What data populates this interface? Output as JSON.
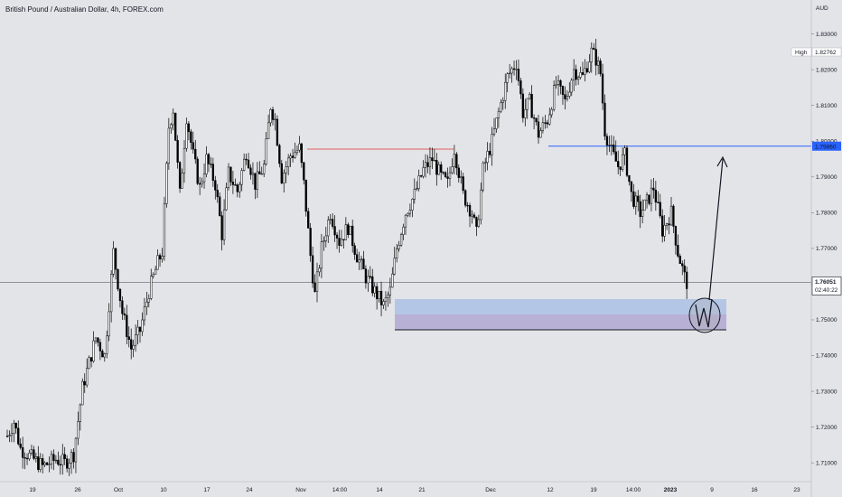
{
  "header": {
    "symbol_title": "British Pound / Australian Dollar, 4h, FOREX.com"
  },
  "price_scale": {
    "currency": "AUD",
    "high_tag_label": "High",
    "high_tag_value": "1.82762",
    "level_tag_value": "1.79860",
    "last_price_value": "1.76051",
    "countdown": "02:40:22"
  },
  "colors": {
    "background": "#e3e4e8",
    "candle_body": "#000000",
    "candle_wick": "#000000",
    "target_line": "#2962ff",
    "resistance_line": "#e06060",
    "demand_zone_upper": "#b4c6e6",
    "demand_zone_lower": "#b9b0d6",
    "last_price_tag": "#ffffff",
    "level_tag": "#2962ff"
  },
  "chart_data": {
    "type": "candlestick",
    "title": "British Pound / Australian Dollar, 4h, FOREX.com",
    "y_unit": "AUD",
    "ylim": [
      1.7055,
      1.8395
    ],
    "y_ticks": [
      "1.83000",
      "1.82000",
      "1.81000",
      "1.80000",
      "1.79000",
      "1.78000",
      "1.77000",
      "1.76000",
      "1.75000",
      "1.74000",
      "1.73000",
      "1.72000",
      "1.71000"
    ],
    "x_ticks": [
      "19",
      "26",
      "Oct",
      "10",
      "17",
      "24",
      "Nov",
      "14:00",
      "14",
      "21",
      "Dec",
      "12",
      "19",
      "14:00",
      "2023",
      "9",
      "16",
      "23"
    ],
    "grid": false,
    "path_keypoints": [
      {
        "i": 0,
        "p": 1.7175
      },
      {
        "i": 3,
        "p": 1.7215
      },
      {
        "i": 6,
        "p": 1.714
      },
      {
        "i": 10,
        "p": 1.712
      },
      {
        "i": 16,
        "p": 1.709
      },
      {
        "i": 22,
        "p": 1.711
      },
      {
        "i": 26,
        "p": 1.71
      },
      {
        "i": 30,
        "p": 1.7125
      },
      {
        "i": 34,
        "p": 1.731
      },
      {
        "i": 40,
        "p": 1.745
      },
      {
        "i": 44,
        "p": 1.74
      },
      {
        "i": 48,
        "p": 1.769
      },
      {
        "i": 52,
        "p": 1.752
      },
      {
        "i": 56,
        "p": 1.742
      },
      {
        "i": 60,
        "p": 1.747
      },
      {
        "i": 64,
        "p": 1.758
      },
      {
        "i": 68,
        "p": 1.766
      },
      {
        "i": 70,
        "p": 1.769
      },
      {
        "i": 73,
        "p": 1.804
      },
      {
        "i": 75,
        "p": 1.809
      },
      {
        "i": 78,
        "p": 1.785
      },
      {
        "i": 81,
        "p": 1.807
      },
      {
        "i": 84,
        "p": 1.796
      },
      {
        "i": 87,
        "p": 1.787
      },
      {
        "i": 90,
        "p": 1.795
      },
      {
        "i": 94,
        "p": 1.788
      },
      {
        "i": 97,
        "p": 1.774
      },
      {
        "i": 100,
        "p": 1.791
      },
      {
        "i": 104,
        "p": 1.786
      },
      {
        "i": 108,
        "p": 1.797
      },
      {
        "i": 112,
        "p": 1.788
      },
      {
        "i": 116,
        "p": 1.793
      },
      {
        "i": 119,
        "p": 1.81
      },
      {
        "i": 121,
        "p": 1.806
      },
      {
        "i": 124,
        "p": 1.79
      },
      {
        "i": 128,
        "p": 1.796
      },
      {
        "i": 132,
        "p": 1.798
      },
      {
        "i": 134,
        "p": 1.788
      },
      {
        "i": 137,
        "p": 1.768
      },
      {
        "i": 139,
        "p": 1.757
      },
      {
        "i": 142,
        "p": 1.77
      },
      {
        "i": 146,
        "p": 1.78
      },
      {
        "i": 150,
        "p": 1.772
      },
      {
        "i": 154,
        "p": 1.776
      },
      {
        "i": 158,
        "p": 1.768
      },
      {
        "i": 162,
        "p": 1.762
      },
      {
        "i": 166,
        "p": 1.758
      },
      {
        "i": 170,
        "p": 1.754
      },
      {
        "i": 173,
        "p": 1.758
      },
      {
        "i": 176,
        "p": 1.77
      },
      {
        "i": 180,
        "p": 1.78
      },
      {
        "i": 184,
        "p": 1.785
      },
      {
        "i": 188,
        "p": 1.792
      },
      {
        "i": 192,
        "p": 1.795
      },
      {
        "i": 196,
        "p": 1.79
      },
      {
        "i": 199,
        "p": 1.788
      },
      {
        "i": 202,
        "p": 1.798
      },
      {
        "i": 206,
        "p": 1.785
      },
      {
        "i": 210,
        "p": 1.78
      },
      {
        "i": 212,
        "p": 1.774
      },
      {
        "i": 215,
        "p": 1.792
      },
      {
        "i": 219,
        "p": 1.8
      },
      {
        "i": 222,
        "p": 1.808
      },
      {
        "i": 226,
        "p": 1.818
      },
      {
        "i": 230,
        "p": 1.822
      },
      {
        "i": 233,
        "p": 1.808
      },
      {
        "i": 236,
        "p": 1.811
      },
      {
        "i": 240,
        "p": 1.802
      },
      {
        "i": 244,
        "p": 1.806
      },
      {
        "i": 248,
        "p": 1.816
      },
      {
        "i": 252,
        "p": 1.811
      },
      {
        "i": 256,
        "p": 1.82
      },
      {
        "i": 260,
        "p": 1.818
      },
      {
        "i": 264,
        "p": 1.825
      },
      {
        "i": 266,
        "p": 1.823
      },
      {
        "i": 268,
        "p": 1.819
      },
      {
        "i": 270,
        "p": 1.803
      },
      {
        "i": 273,
        "p": 1.797
      },
      {
        "i": 276,
        "p": 1.793
      },
      {
        "i": 279,
        "p": 1.796
      },
      {
        "i": 282,
        "p": 1.785
      },
      {
        "i": 286,
        "p": 1.78
      },
      {
        "i": 289,
        "p": 1.783
      },
      {
        "i": 292,
        "p": 1.787
      },
      {
        "i": 296,
        "p": 1.775
      },
      {
        "i": 300,
        "p": 1.78
      },
      {
        "i": 303,
        "p": 1.769
      },
      {
        "i": 306,
        "p": 1.762
      },
      {
        "i": 307,
        "p": 1.7605
      }
    ]
  }
}
